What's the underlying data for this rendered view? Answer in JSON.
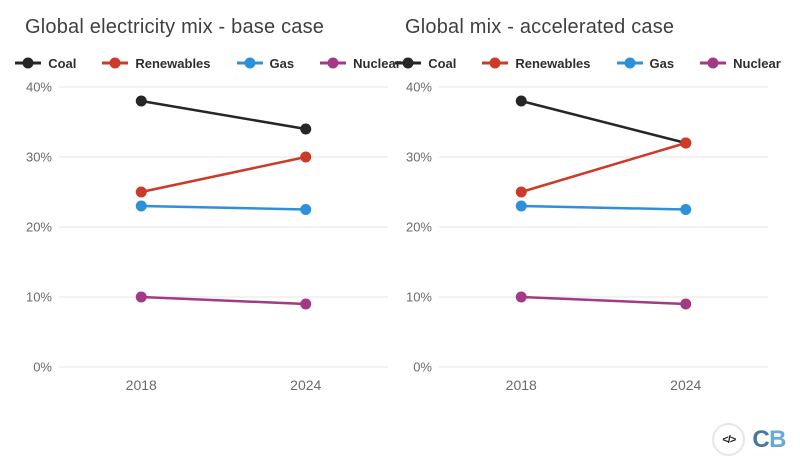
{
  "page": {
    "background_color": "#ffffff",
    "gridline_color": "#e4e4e4",
    "tick_label_color": "#6a6a6a",
    "title_color": "#3f3f3f"
  },
  "chart_data": [
    {
      "type": "line",
      "title": "Global electricity mix - base case",
      "x": [
        "2018",
        "2024"
      ],
      "ylim": [
        0,
        40
      ],
      "y_ticks": [
        40,
        30,
        20,
        10,
        0
      ],
      "y_tick_suffix": "%",
      "grid": true,
      "legend_position": "top",
      "series": [
        {
          "name": "Coal",
          "color": "#262626",
          "values": [
            38,
            34
          ]
        },
        {
          "name": "Renewables",
          "color": "#cc3a28",
          "values": [
            25,
            30
          ]
        },
        {
          "name": "Gas",
          "color": "#2d90d8",
          "values": [
            23,
            22.5
          ]
        },
        {
          "name": "Nuclear",
          "color": "#a23a85",
          "values": [
            10,
            9
          ]
        }
      ]
    },
    {
      "type": "line",
      "title": "Global mix - accelerated case",
      "x": [
        "2018",
        "2024"
      ],
      "ylim": [
        0,
        40
      ],
      "y_ticks": [
        40,
        30,
        20,
        10,
        0
      ],
      "y_tick_suffix": "%",
      "grid": true,
      "legend_position": "top",
      "series": [
        {
          "name": "Coal",
          "color": "#262626",
          "values": [
            38,
            32
          ]
        },
        {
          "name": "Renewables",
          "color": "#cc3a28",
          "values": [
            25,
            32
          ]
        },
        {
          "name": "Gas",
          "color": "#2d90d8",
          "values": [
            23,
            22.5
          ]
        },
        {
          "name": "Nuclear",
          "color": "#a23a85",
          "values": [
            10,
            9
          ]
        }
      ]
    }
  ],
  "branding": {
    "logo_icon_glyph": "</>",
    "logo_letter_c": "C",
    "logo_letter_b": "B"
  }
}
